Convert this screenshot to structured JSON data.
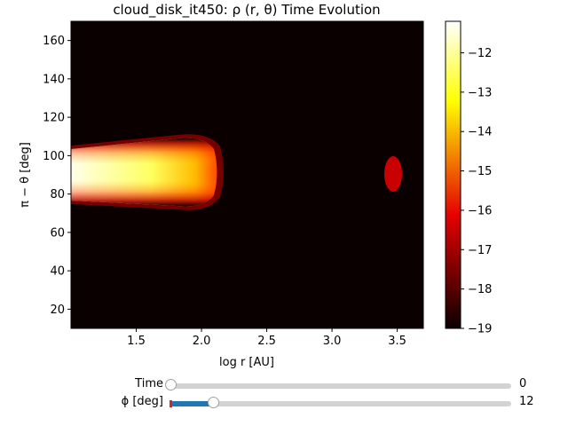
{
  "chart_data": {
    "type": "heatmap",
    "title": "cloud_disk_it450: ρ (r, θ) Time Evolution",
    "xlabel": "log r [AU]",
    "ylabel": "π − θ [deg]",
    "xlim": [
      1.0,
      3.7
    ],
    "ylim": [
      10,
      170
    ],
    "x_ticks": [
      "1.5",
      "2.0",
      "2.5",
      "3.0",
      "3.5"
    ],
    "x_tick_values": [
      1.5,
      2.0,
      2.5,
      3.0,
      3.5
    ],
    "y_ticks": [
      "20",
      "40",
      "60",
      "80",
      "100",
      "120",
      "140",
      "160"
    ],
    "y_tick_values": [
      20,
      40,
      60,
      80,
      100,
      120,
      140,
      160
    ],
    "colormap": "hot",
    "colorbar": {
      "min": -19,
      "max": -11.2,
      "ticks": [
        "−12",
        "−13",
        "−14",
        "−15",
        "−16",
        "−17",
        "−18",
        "−19"
      ],
      "tick_values": [
        -12,
        -13,
        -14,
        -15,
        -16,
        -17,
        -18,
        -19
      ]
    },
    "background_value": -19,
    "features": [
      {
        "name": "disk",
        "x_range": [
          1.0,
          2.15
        ],
        "theta_center": 90,
        "half_width_inner": 12,
        "half_width_outer": 14,
        "peak_value": -11.5
      },
      {
        "name": "cloud-blob",
        "x_center": 3.47,
        "theta_center": 90,
        "x_halfwidth": 0.07,
        "theta_halfwidth": 10,
        "value": -16.3
      }
    ]
  },
  "sliders": {
    "time": {
      "label": "Time",
      "value_text": "0",
      "fraction": 0.0
    },
    "phi": {
      "label": "ϕ [deg]",
      "value_text": "12",
      "fraction": 0.125
    }
  },
  "colors": {
    "slider_fill": "#1f77b4",
    "slider_track": "#d3d3d3",
    "slider_init_marker": "#d62728",
    "plot_background": "#0b0000"
  }
}
